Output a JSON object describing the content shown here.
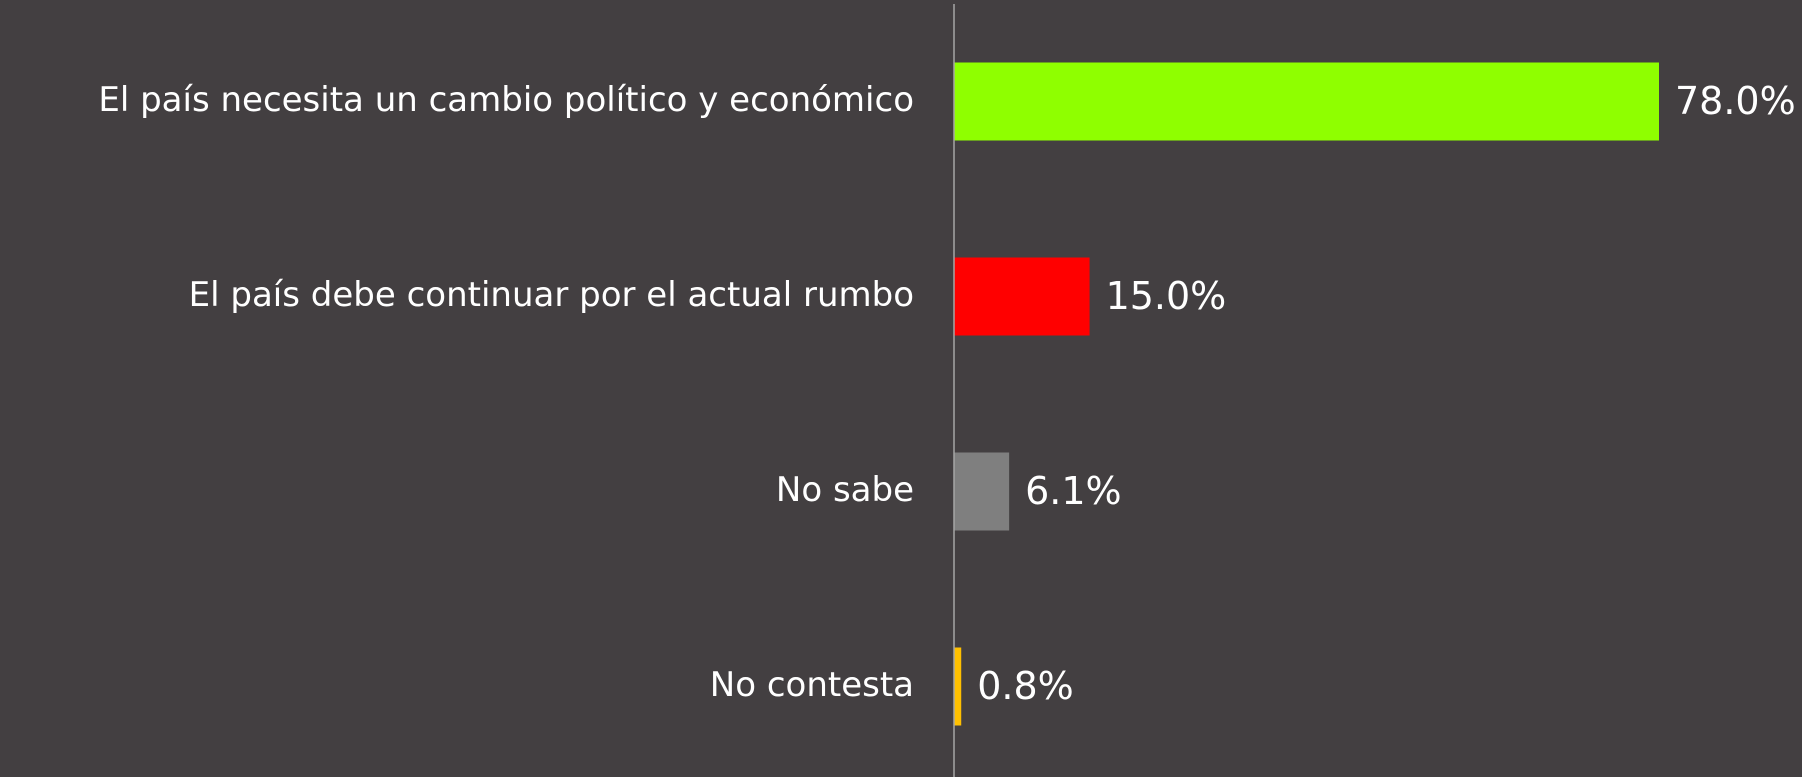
{
  "chart_data": {
    "type": "bar",
    "orientation": "horizontal",
    "categories": [
      "El país necesita un cambio político y económico",
      "El país debe continuar por el actual rumbo",
      "No sabe",
      "No contesta"
    ],
    "values": [
      78.0,
      15.0,
      6.1,
      0.8
    ],
    "value_labels": [
      "78.0%",
      "15.0%",
      "6.1%",
      "0.8%"
    ],
    "colors": [
      "#8fff00",
      "#ff0000",
      "#7f7f7f",
      "#ffc000"
    ],
    "title": "",
    "xlabel": "",
    "ylabel": "",
    "xlim": [
      0,
      78.0
    ],
    "grid": false,
    "legend": "none",
    "background": "#433f41",
    "axis_color": "#a6a6a6"
  }
}
